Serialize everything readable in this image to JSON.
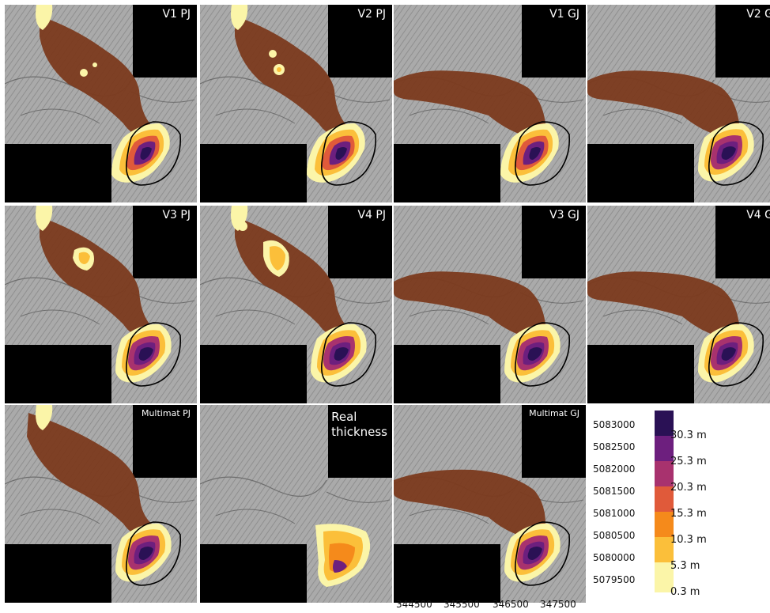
{
  "panels": [
    {
      "label": "V1 PJ"
    },
    {
      "label": "V2 PJ"
    },
    {
      "label": "V1 GJ"
    },
    {
      "label": "V2 G"
    },
    {
      "label": "V3 PJ"
    },
    {
      "label": "V4 PJ"
    },
    {
      "label": "V3 GJ"
    },
    {
      "label": "V4 G"
    },
    {
      "label": "Multimat PJ"
    },
    {
      "label": "Real\nthickness"
    },
    {
      "label": "Multimat GJ"
    }
  ],
  "y_axis_ticks": [
    "5083000",
    "5082500",
    "5082000",
    "5081500",
    "5081000",
    "5080500",
    "5080000",
    "5079500"
  ],
  "x_axis_ticks": [
    "344500",
    "345500",
    "346500",
    "347500"
  ],
  "legend": {
    "items": [
      {
        "label": "30.3 m",
        "color": "#2a1155"
      },
      {
        "label": "25.3 m",
        "color": "#6d1f7e"
      },
      {
        "label": "20.3 m",
        "color": "#a8326e"
      },
      {
        "label": "15.3 m",
        "color": "#e05a3a"
      },
      {
        "label": "10.3 m",
        "color": "#f58a1b"
      },
      {
        "label": "5.3 m",
        "color": "#fbbf3a"
      },
      {
        "label": "0.3 m",
        "color": "#fbf5a8"
      }
    ]
  },
  "colors": {
    "deposit_brown": "#7b3a1e",
    "hillshade": "#9a9a9a",
    "nodata": "#000000"
  }
}
